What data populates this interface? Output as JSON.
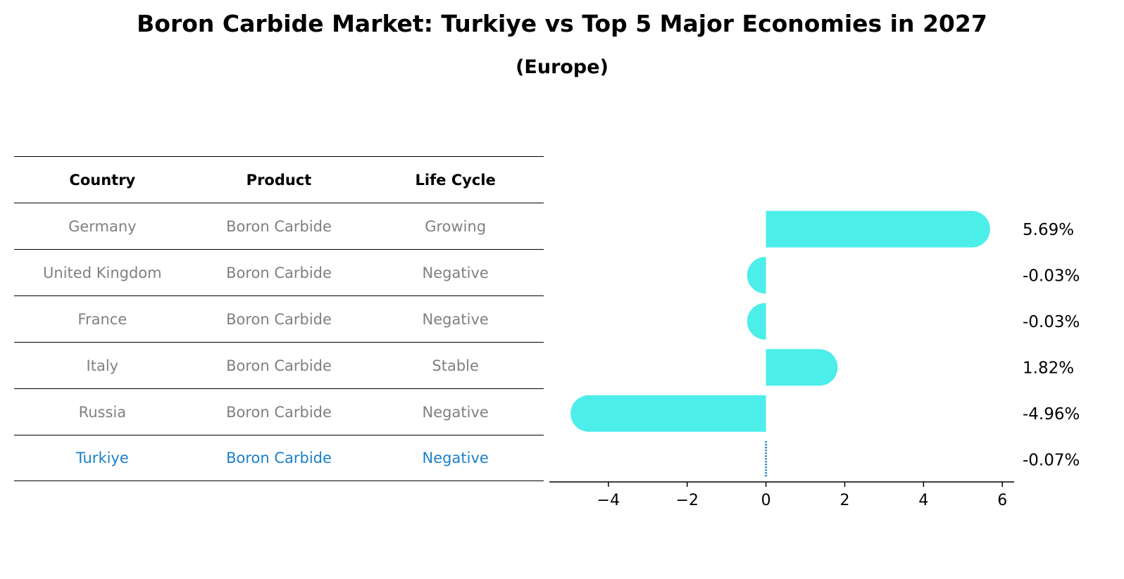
{
  "title": "Boron Carbide Market: Turkiye vs Top 5 Major Economies in 2027",
  "subtitle": "(Europe)",
  "table": {
    "headers": [
      "Country",
      "Product",
      "Life Cycle"
    ],
    "rows": [
      [
        "Germany",
        "Boron Carbide",
        "Growing"
      ],
      [
        "United Kingdom",
        "Boron Carbide",
        "Negative"
      ],
      [
        "France",
        "Boron Carbide",
        "Negative"
      ],
      [
        "Italy",
        "Boron Carbide",
        "Stable"
      ],
      [
        "Russia",
        "Boron Carbide",
        "Negative"
      ],
      [
        "Turkiye",
        "Boron Carbide",
        "Negative"
      ]
    ],
    "highlight_row": 5
  },
  "colors": {
    "bar": "#4ceeea",
    "highlight": "#1a80c8",
    "muted_text": "#808080"
  },
  "chart_data": {
    "type": "bar",
    "orientation": "horizontal",
    "categories": [
      "Germany",
      "United Kingdom",
      "France",
      "Italy",
      "Russia",
      "Turkiye"
    ],
    "values": [
      5.69,
      -0.03,
      -0.03,
      1.82,
      -4.96,
      -0.07
    ],
    "value_labels": [
      "5.69%",
      "-0.03%",
      "-0.03%",
      "1.82%",
      "-4.96%",
      "-0.07%"
    ],
    "xlim": [
      -5.5,
      6.3
    ],
    "xticks": [
      -4,
      -2,
      0,
      2,
      4,
      6
    ],
    "xtick_labels": [
      "−4",
      "−2",
      "0",
      "2",
      "4",
      "6"
    ],
    "highlight_category": "Turkiye",
    "grid": false
  }
}
